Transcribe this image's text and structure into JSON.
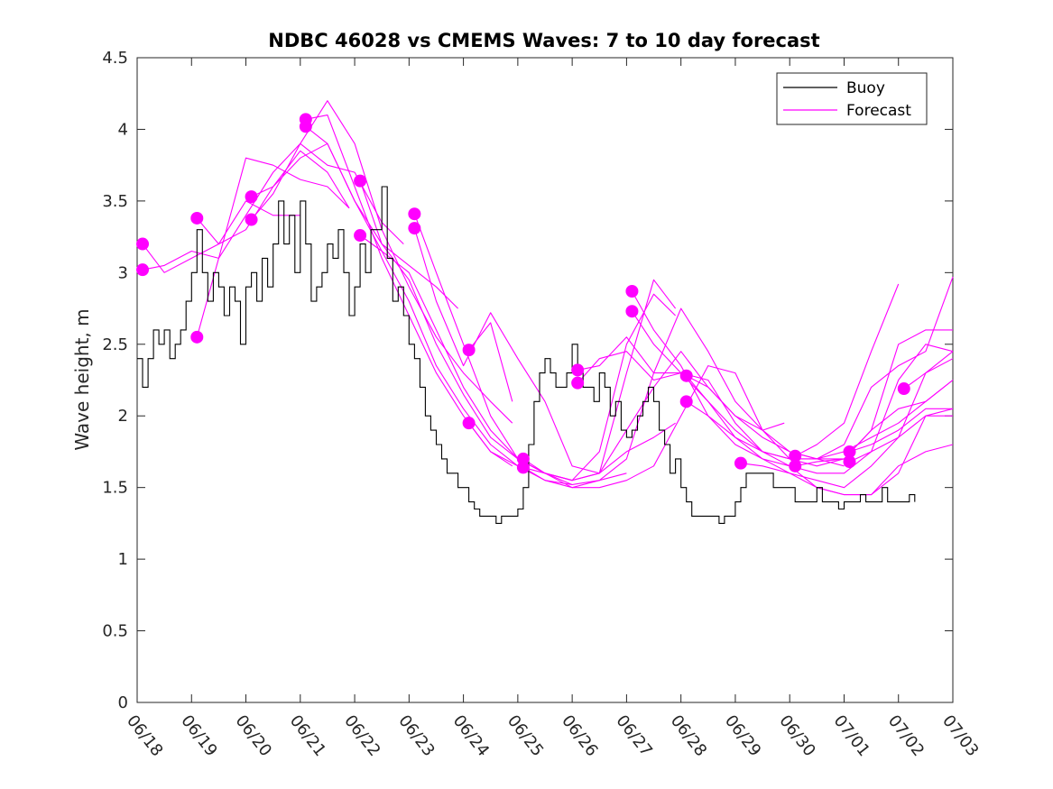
{
  "chart_data": {
    "type": "line",
    "title": "NDBC 46028 vs CMEMS Waves: 7 to 10 day forecast",
    "xlabel": "",
    "ylabel": "Wave height, m",
    "ylim": [
      0,
      4.5
    ],
    "yticks": [
      0,
      0.5,
      1,
      1.5,
      2,
      2.5,
      3,
      3.5,
      4,
      4.5
    ],
    "ytick_labels": [
      "0",
      "0.5",
      "1",
      "1.5",
      "2",
      "2.5",
      "3",
      "3.5",
      "4",
      "4.5"
    ],
    "xlim": [
      0,
      15
    ],
    "x_unit": "days",
    "xticks": [
      0,
      1,
      2,
      3,
      4,
      5,
      6,
      7,
      8,
      9,
      10,
      11,
      12,
      13,
      14,
      15
    ],
    "xtick_labels": [
      "06/18",
      "06/19",
      "06/20",
      "06/21",
      "06/22",
      "06/23",
      "06/24",
      "06/25",
      "06/26",
      "06/27",
      "06/28",
      "06/29",
      "06/30",
      "07/01",
      "07/02",
      "07/03"
    ],
    "grid": false,
    "legend": {
      "position": "top-right",
      "entries": [
        "Buoy",
        "Forecast"
      ]
    },
    "colors": {
      "buoy": "#000000",
      "forecast": "#ff00ff"
    },
    "buoy": {
      "name": "Buoy",
      "x": [
        0.0,
        0.1,
        0.2,
        0.3,
        0.4,
        0.5,
        0.6,
        0.7,
        0.8,
        0.9,
        1.0,
        1.1,
        1.2,
        1.3,
        1.4,
        1.5,
        1.6,
        1.7,
        1.8,
        1.9,
        2.0,
        2.1,
        2.2,
        2.3,
        2.4,
        2.5,
        2.6,
        2.7,
        2.8,
        2.9,
        3.0,
        3.1,
        3.2,
        3.3,
        3.4,
        3.5,
        3.6,
        3.7,
        3.8,
        3.9,
        4.0,
        4.1,
        4.2,
        4.3,
        4.4,
        4.5,
        4.6,
        4.7,
        4.8,
        4.9,
        5.0,
        5.1,
        5.2,
        5.3,
        5.4,
        5.5,
        5.6,
        5.7,
        5.8,
        5.9,
        6.0,
        6.1,
        6.2,
        6.3,
        6.4,
        6.5,
        6.6,
        6.7,
        6.8,
        6.9,
        7.0,
        7.1,
        7.2,
        7.3,
        7.4,
        7.5,
        7.6,
        7.7,
        7.8,
        7.9,
        8.0,
        8.1,
        8.2,
        8.3,
        8.4,
        8.5,
        8.6,
        8.7,
        8.8,
        8.9,
        9.0,
        9.1,
        9.2,
        9.3,
        9.4,
        9.5,
        9.6,
        9.7,
        9.8,
        9.9,
        10.0,
        10.1,
        10.2,
        10.3,
        10.4,
        10.5,
        10.6,
        10.7,
        10.8,
        10.9,
        11.0,
        11.1,
        11.2,
        11.3,
        11.4,
        11.5,
        11.6,
        11.7,
        11.8,
        11.9,
        12.0,
        12.1,
        12.2,
        12.3,
        12.4,
        12.5,
        12.6,
        12.7,
        12.8,
        12.9,
        13.0,
        13.1,
        13.2,
        13.3,
        13.4,
        13.5,
        13.6,
        13.7,
        13.8,
        13.9,
        14.0,
        14.1,
        14.2,
        14.3
      ],
      "y": [
        2.4,
        2.2,
        2.4,
        2.6,
        2.5,
        2.6,
        2.4,
        2.5,
        2.6,
        2.8,
        3.0,
        3.3,
        3.0,
        2.8,
        3.0,
        2.9,
        2.7,
        2.9,
        2.8,
        2.5,
        2.9,
        3.0,
        2.8,
        3.1,
        2.9,
        3.2,
        3.5,
        3.2,
        3.4,
        3.0,
        3.5,
        3.2,
        2.8,
        2.9,
        3.0,
        3.2,
        3.1,
        3.3,
        3.0,
        2.7,
        2.9,
        3.2,
        3.0,
        3.3,
        3.3,
        3.6,
        3.1,
        2.8,
        2.9,
        2.7,
        2.5,
        2.4,
        2.2,
        2.0,
        1.9,
        1.8,
        1.7,
        1.6,
        1.6,
        1.5,
        1.5,
        1.4,
        1.35,
        1.3,
        1.3,
        1.3,
        1.25,
        1.3,
        1.3,
        1.3,
        1.35,
        1.5,
        1.8,
        2.1,
        2.3,
        2.4,
        2.3,
        2.2,
        2.2,
        2.3,
        2.5,
        2.3,
        2.2,
        2.2,
        2.1,
        2.3,
        2.2,
        2.0,
        2.1,
        1.9,
        1.85,
        1.9,
        2.0,
        2.1,
        2.2,
        2.1,
        1.9,
        1.8,
        1.6,
        1.7,
        1.5,
        1.4,
        1.3,
        1.3,
        1.3,
        1.3,
        1.3,
        1.25,
        1.3,
        1.3,
        1.4,
        1.5,
        1.6,
        1.6,
        1.6,
        1.6,
        1.6,
        1.5,
        1.5,
        1.5,
        1.5,
        1.4,
        1.4,
        1.4,
        1.4,
        1.5,
        1.4,
        1.4,
        1.4,
        1.35,
        1.4,
        1.4,
        1.4,
        1.45,
        1.4,
        1.4,
        1.4,
        1.5,
        1.4,
        1.4,
        1.4,
        1.4,
        1.45,
        1.4
      ]
    },
    "forecast_runs": [
      {
        "name": "Forecast",
        "x": [
          0.1,
          0.5,
          1.0,
          1.5,
          2.0,
          2.5,
          3.0
        ],
        "y": [
          3.2,
          3.0,
          3.1,
          3.2,
          3.5,
          3.4,
          3.4
        ]
      },
      {
        "name": "Forecast",
        "x": [
          0.1,
          0.5,
          1.0,
          1.5,
          2.0,
          2.5,
          3.0,
          3.5,
          3.9
        ],
        "y": [
          3.02,
          3.05,
          3.15,
          3.1,
          3.8,
          3.75,
          3.65,
          3.6,
          3.45
        ]
      },
      {
        "name": "Forecast",
        "x": [
          1.1,
          1.5,
          2.0,
          2.5,
          3.0,
          3.5,
          3.9
        ],
        "y": [
          3.38,
          3.2,
          3.3,
          3.6,
          3.85,
          3.7,
          3.45
        ]
      },
      {
        "name": "Forecast",
        "x": [
          1.1,
          1.5,
          2.0,
          2.5,
          3.0,
          3.5,
          4.0,
          4.5,
          4.9
        ],
        "y": [
          2.55,
          3.1,
          3.4,
          3.7,
          3.9,
          3.75,
          3.7,
          3.35,
          3.2
        ]
      },
      {
        "name": "Forecast",
        "x": [
          2.1,
          2.5,
          3.0,
          3.5,
          4.0,
          4.5,
          5.0,
          5.5,
          5.9
        ],
        "y": [
          3.53,
          3.6,
          3.8,
          3.9,
          3.5,
          3.2,
          3.05,
          2.9,
          2.75
        ]
      },
      {
        "name": "Forecast",
        "x": [
          2.1,
          2.5,
          3.0,
          3.5,
          4.0,
          4.5,
          5.0,
          5.5,
          6.0,
          6.5,
          6.9
        ],
        "y": [
          3.37,
          3.55,
          3.9,
          4.2,
          3.9,
          3.3,
          2.9,
          2.55,
          2.3,
          2.1,
          1.95
        ]
      },
      {
        "name": "Forecast",
        "x": [
          3.1,
          3.5,
          4.0,
          4.5,
          5.0,
          5.5,
          6.0,
          6.5,
          6.9
        ],
        "y": [
          4.07,
          4.1,
          3.6,
          3.1,
          2.7,
          2.3,
          2.0,
          1.75,
          1.65
        ]
      },
      {
        "name": "Forecast",
        "x": [
          3.1,
          3.5,
          4.0,
          4.5,
          5.0,
          5.5,
          6.0,
          6.5,
          7.0,
          7.5,
          8.0
        ],
        "y": [
          4.02,
          3.9,
          3.5,
          3.15,
          2.8,
          2.35,
          2.05,
          1.8,
          1.65,
          1.55,
          1.52
        ]
      },
      {
        "name": "Forecast",
        "x": [
          4.1,
          4.5,
          5.0,
          5.5,
          6.0,
          6.5,
          7.0,
          7.5,
          8.0,
          8.5,
          9.0
        ],
        "y": [
          3.64,
          3.2,
          2.95,
          2.5,
          2.15,
          1.85,
          1.7,
          1.6,
          1.52,
          1.55,
          1.6
        ]
      },
      {
        "name": "Forecast",
        "x": [
          4.1,
          4.5,
          5.0,
          5.5,
          6.0,
          6.5,
          7.0,
          7.5,
          8.0,
          8.5,
          9.0,
          9.5,
          9.9
        ],
        "y": [
          3.26,
          3.15,
          3.0,
          2.6,
          2.2,
          1.9,
          1.7,
          1.6,
          1.55,
          1.6,
          2.3,
          2.95,
          2.75
        ]
      },
      {
        "name": "Forecast",
        "x": [
          5.1,
          5.5,
          6.0,
          6.5,
          7.0,
          7.5,
          8.0,
          8.5,
          9.0,
          9.5,
          9.9
        ],
        "y": [
          3.41,
          3.0,
          2.5,
          2.0,
          1.7,
          1.6,
          1.55,
          1.75,
          2.5,
          2.85,
          2.7
        ]
      },
      {
        "name": "Forecast",
        "x": [
          5.1,
          5.5,
          6.0,
          6.5,
          7.0,
          7.5,
          8.0,
          8.5,
          9.0,
          9.5,
          9.9
        ],
        "y": [
          3.31,
          2.8,
          2.35,
          2.72,
          2.4,
          2.1,
          1.65,
          1.6,
          1.75,
          1.85,
          1.95
        ]
      },
      {
        "name": "Forecast",
        "x": [
          6.1,
          6.5,
          6.9
        ],
        "y": [
          2.46,
          2.65,
          2.1
        ]
      },
      {
        "name": "Forecast",
        "x": [
          6.1,
          6.5,
          7.0,
          7.5,
          8.0,
          8.5,
          9.0,
          9.5,
          10.0,
          10.5,
          11.0,
          11.5,
          11.9
        ],
        "y": [
          1.95,
          1.75,
          1.65,
          1.6,
          1.55,
          1.6,
          1.9,
          2.2,
          2.45,
          2.2,
          2.0,
          1.9,
          1.95
        ]
      },
      {
        "name": "Forecast",
        "x": [
          7.1,
          7.5,
          8.0,
          8.5,
          9.0,
          9.5,
          10.0,
          10.5,
          11.0,
          11.5,
          12.0,
          12.5,
          13.0
        ],
        "y": [
          1.7,
          1.6,
          1.5,
          1.5,
          1.55,
          1.65,
          2.0,
          2.35,
          2.3,
          1.9,
          1.7,
          1.65,
          1.7
        ]
      },
      {
        "name": "Forecast",
        "x": [
          7.1,
          7.5,
          8.0,
          8.5,
          9.0,
          9.5,
          10.0,
          10.5,
          11.0,
          11.5,
          12.0,
          12.5,
          13.0,
          13.5,
          14.0,
          14.5,
          15.0
        ],
        "y": [
          1.64,
          1.55,
          1.5,
          1.55,
          1.7,
          2.3,
          2.75,
          2.45,
          2.1,
          1.9,
          1.75,
          1.7,
          1.7,
          1.9,
          2.5,
          2.6,
          2.6
        ]
      },
      {
        "name": "Forecast",
        "x": [
          8.1,
          8.5,
          9.0,
          9.5,
          10.0,
          10.5,
          11.0,
          11.5,
          12.0,
          12.5,
          13.0
        ],
        "y": [
          2.32,
          2.35,
          2.55,
          2.3,
          2.3,
          2.2,
          2.0,
          1.85,
          1.75,
          1.7,
          1.65
        ]
      },
      {
        "name": "Forecast",
        "x": [
          8.1,
          8.5,
          9.0,
          9.5,
          10.0,
          10.5,
          11.0,
          11.5,
          12.0,
          12.5,
          13.0,
          13.5,
          14.0,
          14.5,
          15.0
        ],
        "y": [
          2.23,
          2.4,
          2.45,
          2.25,
          2.3,
          2.25,
          1.95,
          1.75,
          1.65,
          1.5,
          1.45,
          1.45,
          1.6,
          2.0,
          2.05
        ]
      },
      {
        "name": "Forecast",
        "x": [
          9.1,
          9.5,
          10.0,
          10.5,
          11.0,
          11.5,
          12.0,
          12.5,
          13.0,
          13.5,
          14.0,
          14.5,
          15.0
        ],
        "y": [
          2.87,
          2.6,
          2.35,
          2.0,
          1.8,
          1.7,
          1.65,
          1.6,
          1.6,
          1.75,
          2.25,
          2.5,
          2.45
        ]
      },
      {
        "name": "Forecast",
        "x": [
          9.1,
          9.5,
          10.0,
          10.5,
          11.0,
          11.5,
          12.0,
          12.5,
          13.0,
          13.5,
          14.0,
          14.5,
          15.0
        ],
        "y": [
          2.73,
          2.5,
          2.3,
          2.1,
          1.85,
          1.75,
          1.7,
          1.7,
          1.75,
          1.85,
          1.95,
          2.1,
          2.25
        ]
      },
      {
        "name": "Forecast",
        "x": [
          10.1,
          10.5,
          11.0,
          11.5,
          12.0,
          12.5,
          13.0,
          13.5,
          14.0,
          14.5,
          15.0
        ],
        "y": [
          2.28,
          2.1,
          1.9,
          1.75,
          1.7,
          1.7,
          1.8,
          2.2,
          2.35,
          2.45,
          2.97
        ]
      },
      {
        "name": "Forecast",
        "x": [
          10.1,
          10.5,
          11.0,
          11.5,
          12.0,
          12.5,
          13.0,
          13.5,
          14.0,
          14.5,
          15.0
        ],
        "y": [
          2.1,
          2.0,
          1.85,
          1.7,
          1.6,
          1.5,
          1.45,
          1.45,
          1.65,
          1.75,
          1.8
        ]
      },
      {
        "name": "Forecast",
        "x": [
          11.1,
          11.5,
          12.0,
          12.5,
          13.0,
          13.5,
          14.0,
          14.5,
          15.0
        ],
        "y": [
          1.67,
          1.65,
          1.6,
          1.55,
          1.5,
          1.65,
          1.85,
          2.3,
          2.45
        ]
      },
      {
        "name": "Forecast",
        "x": [
          12.1,
          12.5,
          13.0,
          13.5,
          14.0
        ],
        "y": [
          1.72,
          1.8,
          1.95,
          2.45,
          2.92
        ]
      },
      {
        "name": "Forecast",
        "x": [
          12.1,
          12.5,
          13.0,
          13.5,
          14.0,
          14.5,
          15.0
        ],
        "y": [
          1.65,
          1.68,
          1.7,
          1.9,
          2.05,
          2.1,
          2.25
        ]
      },
      {
        "name": "Forecast",
        "x": [
          13.1,
          13.5,
          14.0,
          14.5,
          15.0
        ],
        "y": [
          1.75,
          1.8,
          1.9,
          2.05,
          2.05
        ]
      },
      {
        "name": "Forecast",
        "x": [
          13.1,
          13.5,
          14.0,
          14.5,
          15.0
        ],
        "y": [
          1.68,
          1.75,
          1.85,
          2.0,
          2.0
        ]
      },
      {
        "name": "Forecast",
        "x": [
          14.1,
          14.5,
          15.0
        ],
        "y": [
          2.19,
          2.3,
          2.4
        ]
      }
    ],
    "forecast_markers": {
      "x": [
        0.1,
        0.1,
        1.1,
        1.1,
        2.1,
        2.1,
        3.1,
        3.1,
        4.1,
        4.1,
        5.1,
        5.1,
        6.1,
        6.1,
        7.1,
        7.1,
        8.1,
        8.1,
        9.1,
        9.1,
        10.1,
        10.1,
        11.1,
        12.1,
        12.1,
        13.1,
        13.1,
        14.1
      ],
      "y": [
        3.2,
        3.02,
        3.38,
        2.55,
        3.53,
        3.37,
        4.07,
        4.02,
        3.64,
        3.26,
        3.41,
        3.31,
        2.46,
        1.95,
        1.7,
        1.64,
        2.32,
        2.23,
        2.87,
        2.73,
        2.28,
        2.1,
        1.67,
        1.72,
        1.65,
        1.75,
        1.68,
        2.19
      ]
    }
  }
}
